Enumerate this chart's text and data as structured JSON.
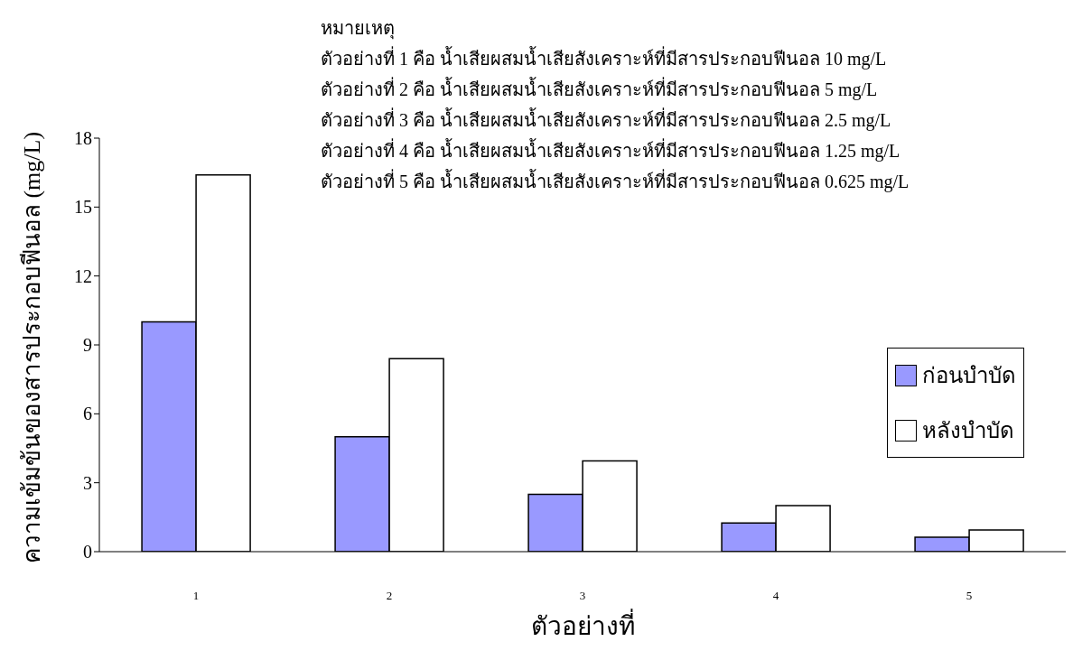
{
  "chart_data": {
    "type": "bar",
    "xlabel": "ตัวอย่างที่",
    "ylabel": "ความเข้มข้นของสารประกอบฟีนอล (mg/L)",
    "categories": [
      "1",
      "2",
      "3",
      "4",
      "5"
    ],
    "series": [
      {
        "name": "ก่อนบำบัด",
        "color": "#9999ff",
        "values": [
          10,
          5,
          2.5,
          1.25,
          0.63
        ]
      },
      {
        "name": "หลังบำบัด",
        "color": "#ffffff",
        "values": [
          16.4,
          8.4,
          3.95,
          2,
          0.94
        ]
      }
    ],
    "ylim": [
      0,
      18
    ],
    "yticks": [
      0,
      3,
      6,
      9,
      12,
      15,
      18
    ],
    "grid": false,
    "legend": "right",
    "annotations": [
      "หมายเหตุ",
      "ตัวอย่างที่ 1 คือ น้ำเสียผสมน้ำเสียสังเคราะห์ที่มีสารประกอบฟีนอล 10 mg/L",
      "ตัวอย่างที่ 2 คือ น้ำเสียผสมน้ำเสียสังเคราะห์ที่มีสารประกอบฟีนอล 5 mg/L",
      "ตัวอย่างที่ 3 คือ น้ำเสียผสมน้ำเสียสังเคราะห์ที่มีสารประกอบฟีนอล 2.5 mg/L",
      "ตัวอย่างที่ 4 คือ น้ำเสียผสมน้ำเสียสังเคราะห์ที่มีสารประกอบฟีนอล 1.25 mg/L",
      "ตัวอย่างที่ 5 คือ น้ำเสียผสมน้ำเสียสังเคราะห์ที่มีสารประกอบฟีนอล 0.625 mg/L"
    ]
  }
}
